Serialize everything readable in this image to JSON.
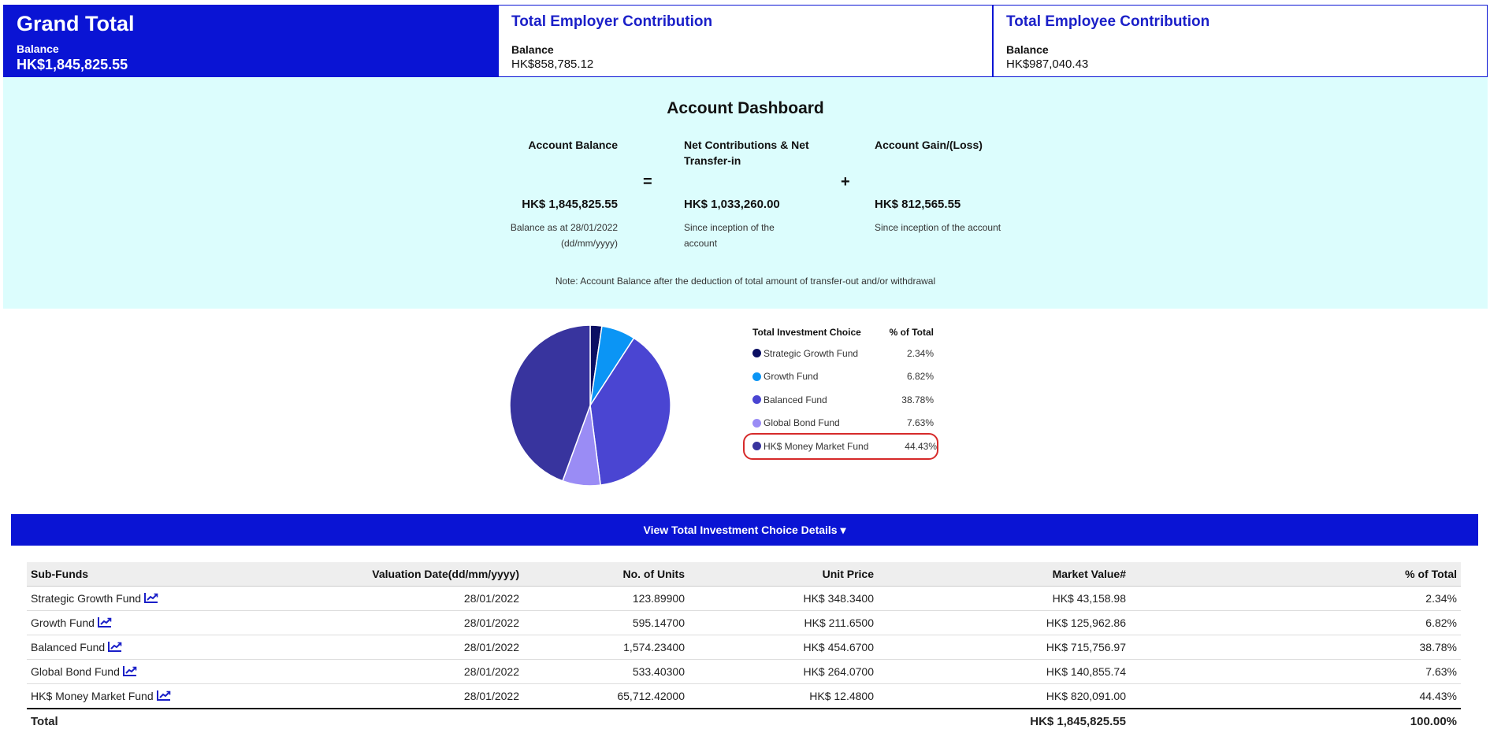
{
  "cards": [
    {
      "title": "Grand Total",
      "label": "Balance",
      "value": "HK$1,845,825.55"
    },
    {
      "title": "Total Employer Contribution",
      "label": "Balance",
      "value": "HK$858,785.12"
    },
    {
      "title": "Total Employee Contribution",
      "label": "Balance",
      "value": "HK$987,040.43"
    }
  ],
  "dashboard": {
    "title": "Account Dashboard",
    "balance_head": "Account Balance",
    "balance_amount": "HK$ 1,845,825.55",
    "balance_sub": "Balance as at 28/01/2022 (dd/mm/yyyy)",
    "equals": "=",
    "net_head": "Net Contributions & Net Transfer-in",
    "net_amount": "HK$ 1,033,260.00",
    "net_sub": "Since inception of the account",
    "plus": "+",
    "gain_head": "Account Gain/(Loss)",
    "gain_amount": "HK$ 812,565.55",
    "gain_sub": "Since inception of the account",
    "note": "Note: Account Balance after the deduction of total amount of transfer-out and/or withdrawal"
  },
  "legend": {
    "header_name": "Total Investment Choice",
    "header_pct": "% of Total",
    "items": [
      {
        "name": "Strategic Growth Fund",
        "pct": "2.34%",
        "color": "#0b0f63"
      },
      {
        "name": "Growth Fund",
        "pct": "6.82%",
        "color": "#0b95f5"
      },
      {
        "name": "Balanced Fund",
        "pct": "38.78%",
        "color": "#4a45d2"
      },
      {
        "name": "Global Bond Fund",
        "pct": "7.63%",
        "color": "#9a8cf5"
      },
      {
        "name": "HK$ Money Market Fund",
        "pct": "44.43%",
        "color": "#38349e"
      }
    ]
  },
  "chart_data": {
    "type": "pie",
    "categories": [
      "Strategic Growth Fund",
      "Growth Fund",
      "Balanced Fund",
      "Global Bond Fund",
      "HK$ Money Market Fund"
    ],
    "values": [
      2.34,
      6.82,
      38.78,
      7.63,
      44.43
    ],
    "colors": [
      "#0b0f63",
      "#0b95f5",
      "#4a45d2",
      "#9a8cf5",
      "#38349e"
    ]
  },
  "details_bar": {
    "label": "View Total Investment Choice Details",
    "icon": "caret-down-icon"
  },
  "table": {
    "headers": [
      "Sub-Funds",
      "Valuation Date(dd/mm/yyyy)",
      "No. of Units",
      "Unit Price",
      "Market Value#",
      "% of Total"
    ],
    "rows": [
      [
        "Strategic Growth Fund",
        "28/01/2022",
        "123.89900",
        "HK$ 348.3400",
        "HK$ 43,158.98",
        "2.34%"
      ],
      [
        "Growth Fund",
        "28/01/2022",
        "595.14700",
        "HK$ 211.6500",
        "HK$ 125,962.86",
        "6.82%"
      ],
      [
        "Balanced Fund",
        "28/01/2022",
        "1,574.23400",
        "HK$ 454.6700",
        "HK$ 715,756.97",
        "38.78%"
      ],
      [
        "Global Bond Fund",
        "28/01/2022",
        "533.40300",
        "HK$ 264.0700",
        "HK$ 140,855.74",
        "7.63%"
      ],
      [
        "HK$ Money Market Fund",
        "28/01/2022",
        "65,712.42000",
        "HK$ 12.4800",
        "HK$ 820,091.00",
        "44.43%"
      ]
    ],
    "total": {
      "label": "Total",
      "market_value": "HK$ 1,845,825.55",
      "pct": "100.00%"
    }
  },
  "colors": {
    "accent": "#0a14d4",
    "dashboard_bg": "#dcfdfd",
    "highlight": "#d62a2a"
  }
}
